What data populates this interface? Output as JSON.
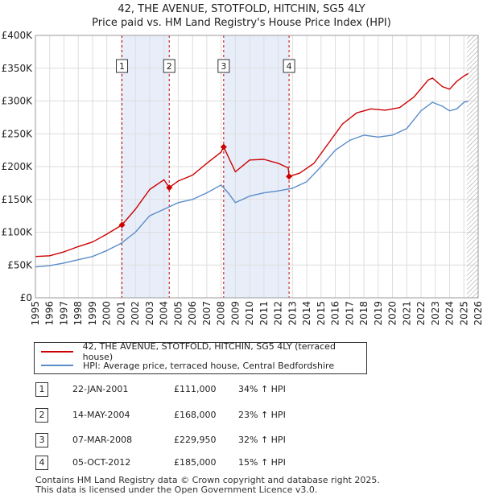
{
  "title_line1": "42, THE AVENUE, STOTFOLD, HITCHIN, SG5 4LY",
  "title_line2": "Price paid vs. HM Land Registry's House Price Index (HPI)",
  "chart_data": {
    "type": "line",
    "xlim": [
      1995,
      2026
    ],
    "ylim": [
      0,
      400000
    ],
    "y_ticks": [
      {
        "value": 0,
        "label": "£0"
      },
      {
        "value": 50000,
        "label": "£50K"
      },
      {
        "value": 100000,
        "label": "£100K"
      },
      {
        "value": 150000,
        "label": "£150K"
      },
      {
        "value": 200000,
        "label": "£200K"
      },
      {
        "value": 250000,
        "label": "£250K"
      },
      {
        "value": 300000,
        "label": "£300K"
      },
      {
        "value": 350000,
        "label": "£350K"
      },
      {
        "value": 400000,
        "label": "£400K"
      }
    ],
    "x_ticks": [
      "1995",
      "1996",
      "1997",
      "1998",
      "1999",
      "2000",
      "2001",
      "2002",
      "2003",
      "2004",
      "2005",
      "2006",
      "2007",
      "2008",
      "2009",
      "2010",
      "2011",
      "2012",
      "2013",
      "2014",
      "2015",
      "2016",
      "2017",
      "2018",
      "2019",
      "2020",
      "2021",
      "2022",
      "2023",
      "2024",
      "2025",
      "2026"
    ],
    "grid": true,
    "shaded_periods": [
      [
        2001.06,
        2004.37
      ],
      [
        2008.18,
        2012.76
      ]
    ],
    "future_hatch_from": 2025.2,
    "series": [
      {
        "name": "42, THE AVENUE, STOTFOLD, HITCHIN, SG5 4LY (terraced house)",
        "color": "#cc0000",
        "x": [
          1995.0,
          1996.0,
          1997.0,
          1998.0,
          1999.0,
          2000.0,
          2001.06,
          2002.0,
          2003.0,
          2004.0,
          2004.37,
          2005.0,
          2006.0,
          2007.0,
          2008.0,
          2008.18,
          2009.0,
          2010.0,
          2011.0,
          2012.0,
          2012.7,
          2012.76,
          2013.5,
          2014.5,
          2015.5,
          2016.5,
          2017.5,
          2018.5,
          2019.5,
          2020.5,
          2021.5,
          2022.5,
          2022.8,
          2023.5,
          2024.0,
          2024.5,
          2025.0,
          2025.3
        ],
        "y": [
          63000,
          64000,
          70000,
          78000,
          85000,
          97000,
          111000,
          135000,
          165000,
          180000,
          168000,
          178000,
          187000,
          205000,
          222000,
          229950,
          192000,
          210000,
          211000,
          205000,
          198000,
          185000,
          190000,
          205000,
          235000,
          265000,
          282000,
          288000,
          286000,
          290000,
          306000,
          332000,
          335000,
          322000,
          318000,
          330000,
          338000,
          342000
        ]
      },
      {
        "name": "HPI: Average price, terraced house, Central Bedfordshire",
        "color": "#5b8cc9",
        "x": [
          1995.0,
          1996.0,
          1997.0,
          1998.0,
          1999.0,
          2000.0,
          2001.0,
          2002.0,
          2003.0,
          2004.0,
          2005.0,
          2006.0,
          2007.0,
          2008.0,
          2008.5,
          2009.0,
          2010.0,
          2011.0,
          2012.0,
          2013.0,
          2014.0,
          2015.0,
          2016.0,
          2017.0,
          2018.0,
          2019.0,
          2020.0,
          2021.0,
          2022.0,
          2022.8,
          2023.5,
          2024.0,
          2024.5,
          2025.0,
          2025.3
        ],
        "y": [
          47000,
          49000,
          53000,
          58000,
          63000,
          72000,
          83000,
          100000,
          125000,
          135000,
          145000,
          150000,
          160000,
          172000,
          160000,
          145000,
          155000,
          160000,
          163000,
          167000,
          177000,
          200000,
          225000,
          240000,
          248000,
          245000,
          248000,
          258000,
          285000,
          298000,
          292000,
          285000,
          288000,
          298000,
          300000
        ]
      }
    ],
    "markers": [
      {
        "label": "1",
        "x": 2001.06,
        "y": 111000
      },
      {
        "label": "2",
        "x": 2004.37,
        "y": 168000
      },
      {
        "label": "3",
        "x": 2008.18,
        "y": 229950
      },
      {
        "label": "4",
        "x": 2012.76,
        "y": 185000
      }
    ]
  },
  "legend": {
    "property": "42, THE AVENUE, STOTFOLD, HITCHIN, SG5 4LY (terraced house)",
    "hpi": "HPI: Average price, terraced house, Central Bedfordshire"
  },
  "transactions": [
    {
      "num": "1",
      "date": "22-JAN-2001",
      "price": "£111,000",
      "hpi": "34% ↑ HPI"
    },
    {
      "num": "2",
      "date": "14-MAY-2004",
      "price": "£168,000",
      "hpi": "23% ↑ HPI"
    },
    {
      "num": "3",
      "date": "07-MAR-2008",
      "price": "£229,950",
      "hpi": "32% ↑ HPI"
    },
    {
      "num": "4",
      "date": "05-OCT-2012",
      "price": "£185,000",
      "hpi": "15% ↑ HPI"
    }
  ],
  "footer": {
    "line1": "Contains HM Land Registry data © Crown copyright and database right 2025.",
    "line2": "This data is licensed under the Open Government Licence v3.0."
  }
}
